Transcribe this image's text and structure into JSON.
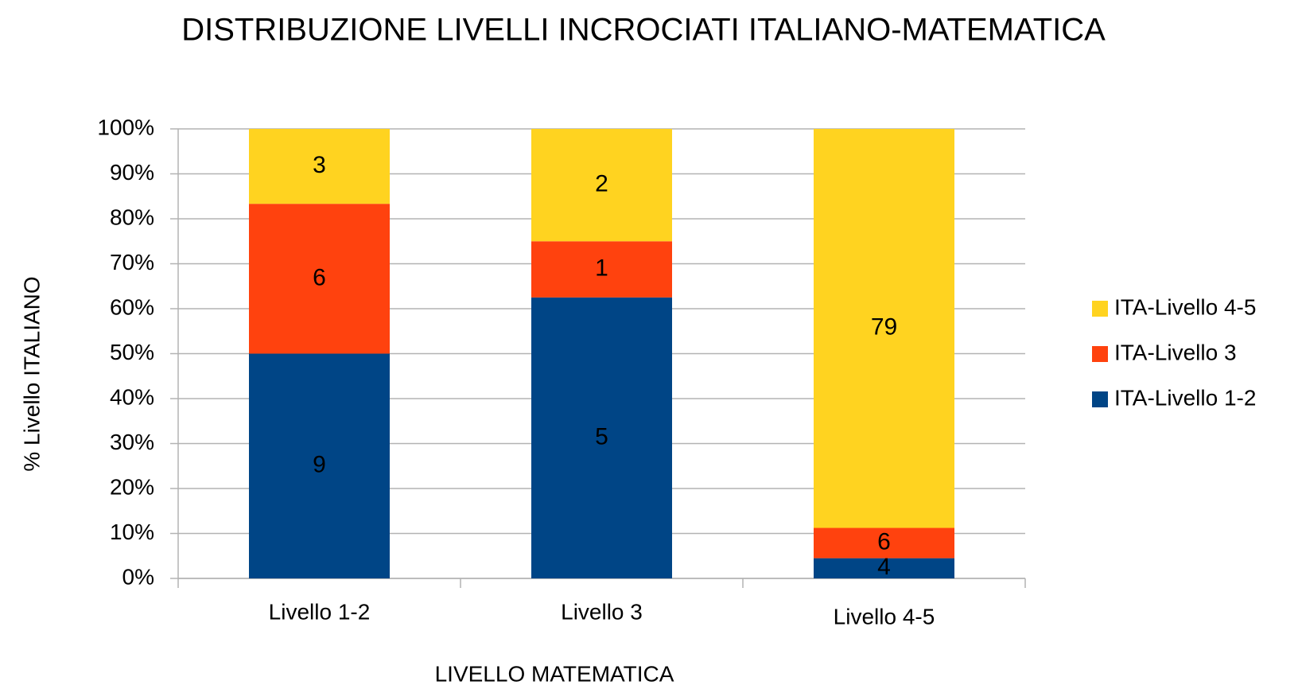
{
  "chart_data": {
    "type": "bar",
    "stacking": "percent",
    "title": "DISTRIBUZIONE LIVELLI INCROCIATI ITALIANO-MATEMATICA",
    "x_label": "LIVELLO MATEMATICA",
    "y_label": "% Livello ITALIANO",
    "categories": [
      "Livello 1-2",
      "Livello 3",
      "Livello 4-5"
    ],
    "series": [
      {
        "name": "ITA-Livello 1-2",
        "color": "#004586",
        "values": [
          9,
          5,
          4
        ]
      },
      {
        "name": "ITA-Livello 3",
        "color": "#ff420e",
        "values": [
          6,
          1,
          6
        ]
      },
      {
        "name": "ITA-Livello 4-5",
        "color": "#ffd320",
        "values": [
          3,
          2,
          79
        ]
      }
    ],
    "ylim": [
      0,
      100
    ],
    "yticks": [
      {
        "value": 0,
        "label": "0%"
      },
      {
        "value": 10,
        "label": "10%"
      },
      {
        "value": 20,
        "label": "20%"
      },
      {
        "value": 30,
        "label": "30%"
      },
      {
        "value": 40,
        "label": "40%"
      },
      {
        "value": 50,
        "label": "50%"
      },
      {
        "value": 60,
        "label": "60%"
      },
      {
        "value": 70,
        "label": "70%"
      },
      {
        "value": 80,
        "label": "80%"
      },
      {
        "value": 90,
        "label": "90%"
      },
      {
        "value": 100,
        "label": "100%"
      }
    ],
    "grid": true,
    "legend": "right"
  }
}
